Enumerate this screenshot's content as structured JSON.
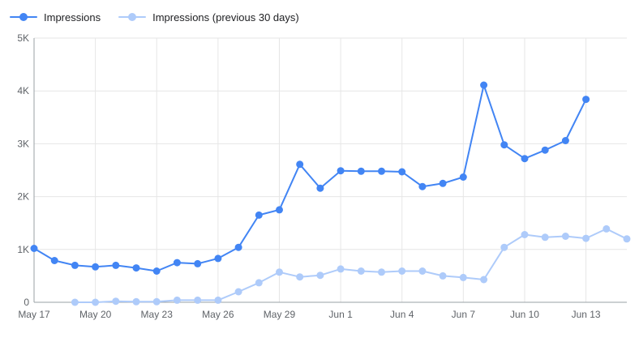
{
  "colors": {
    "current": "#4285f4",
    "previous": "#aecbfa",
    "grid": "#e6e6e6",
    "axis": "#9aa0a6",
    "text": "#5f6368"
  },
  "legend": [
    {
      "label": "Impressions",
      "color": "#4285f4"
    },
    {
      "label": "Impressions (previous 30 days)",
      "color": "#aecbfa"
    }
  ],
  "chart_data": {
    "type": "line",
    "title": "",
    "xlabel": "",
    "ylabel": "",
    "ylim": [
      0,
      5000
    ],
    "yticks": [
      {
        "value": 0,
        "label": "0"
      },
      {
        "value": 1000,
        "label": "1K"
      },
      {
        "value": 2000,
        "label": "2K"
      },
      {
        "value": 3000,
        "label": "3K"
      },
      {
        "value": 4000,
        "label": "4K"
      },
      {
        "value": 5000,
        "label": "5K"
      }
    ],
    "x": [
      "May 17",
      "May 18",
      "May 19",
      "May 20",
      "May 21",
      "May 22",
      "May 23",
      "May 24",
      "May 25",
      "May 26",
      "May 27",
      "May 28",
      "May 29",
      "May 30",
      "May 31",
      "Jun 1",
      "Jun 2",
      "Jun 3",
      "Jun 4",
      "Jun 5",
      "Jun 6",
      "Jun 7",
      "Jun 8",
      "Jun 9",
      "Jun 10",
      "Jun 11",
      "Jun 12",
      "Jun 13",
      "Jun 14",
      "Jun 15"
    ],
    "xticks": [
      {
        "index": 0,
        "label": "May 17"
      },
      {
        "index": 3,
        "label": "May 20"
      },
      {
        "index": 6,
        "label": "May 23"
      },
      {
        "index": 9,
        "label": "May 26"
      },
      {
        "index": 12,
        "label": "May 29"
      },
      {
        "index": 15,
        "label": "Jun 1"
      },
      {
        "index": 18,
        "label": "Jun 4"
      },
      {
        "index": 21,
        "label": "Jun 7"
      },
      {
        "index": 24,
        "label": "Jun 10"
      },
      {
        "index": 27,
        "label": "Jun 13"
      }
    ],
    "series": [
      {
        "name": "Impressions",
        "color": "#4285f4",
        "values": [
          1020,
          790,
          700,
          670,
          700,
          650,
          590,
          750,
          730,
          830,
          1040,
          1650,
          1750,
          2610,
          2160,
          2490,
          2480,
          2480,
          2470,
          2190,
          2250,
          2370,
          4110,
          2980,
          2720,
          2880,
          3060,
          3840,
          null,
          null
        ]
      },
      {
        "name": "Impressions (previous 30 days)",
        "color": "#aecbfa",
        "values": [
          null,
          null,
          0,
          0,
          20,
          10,
          10,
          40,
          40,
          40,
          200,
          370,
          570,
          480,
          510,
          630,
          590,
          570,
          590,
          590,
          500,
          470,
          430,
          1040,
          1280,
          1230,
          1250,
          1210,
          1390,
          1200
        ]
      }
    ],
    "grid": true,
    "legend_position": "top-left"
  }
}
